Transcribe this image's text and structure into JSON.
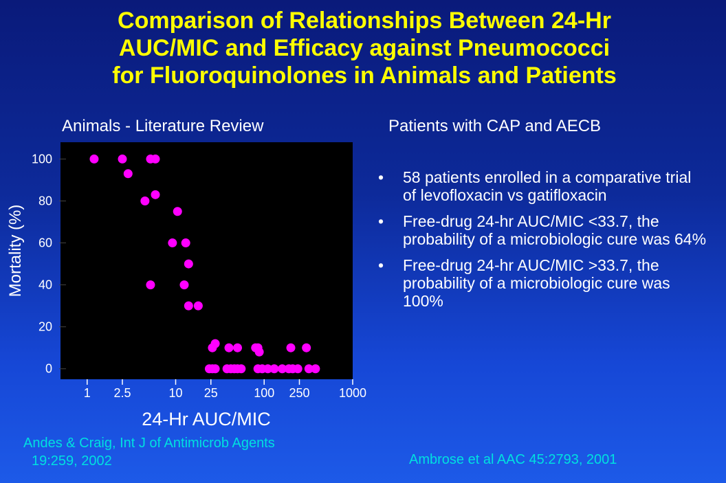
{
  "title": {
    "line1": "Comparison of Relationships Between 24-Hr",
    "line2": "AUC/MIC and Efficacy against Pneumococci",
    "line3": "for Fluoroquinolones in Animals and Patients"
  },
  "left_heading": "Animals - Literature Review",
  "right_heading": "Patients with CAP and AECB",
  "bullets": [
    "58 patients enrolled in a comparative trial of levofloxacin vs gatifloxacin",
    "Free-drug 24-hr AUC/MIC <33.7, the probability of a microbiologic cure was 64%",
    "Free-drug 24-hr AUC/MIC >33.7, the probability of a microbiologic cure was 100%"
  ],
  "bullet_char": "•",
  "references": {
    "left_line1": "Andes & Craig, Int J of Antimicrob Agents",
    "left_line2": "19:259, 2002",
    "right": "Ambrose et al  AAC 45:2793, 2001"
  },
  "colors": {
    "title": "#ffff00",
    "points": "#ff00ff",
    "reference_text": "#00e0e0",
    "plot_background": "#000000"
  },
  "chart_data": {
    "type": "scatter",
    "title": "",
    "xlabel": "24-Hr AUC/MIC",
    "ylabel": "Mortality (%)",
    "x_scale": "log",
    "xlim": [
      0.5,
      1000
    ],
    "ylim": [
      -5,
      108
    ],
    "x_ticks": [
      1,
      2.5,
      10,
      25,
      100,
      250,
      1000
    ],
    "x_tick_labels": [
      "1",
      "2.5",
      "10",
      "25",
      "100",
      "250",
      "1000"
    ],
    "y_ticks": [
      0,
      20,
      40,
      60,
      80,
      100
    ],
    "y_tick_labels": [
      "0",
      "20",
      "40",
      "60",
      "80",
      "100"
    ],
    "grid": false,
    "legend": "none",
    "series": [
      {
        "points": [
          [
            1.2,
            100
          ],
          [
            2.5,
            100
          ],
          [
            2.9,
            93
          ],
          [
            5.2,
            100
          ],
          [
            5.9,
            100
          ],
          [
            4.5,
            80
          ],
          [
            5.9,
            83
          ],
          [
            9.2,
            60
          ],
          [
            10.5,
            75
          ],
          [
            13,
            60
          ],
          [
            14,
            50
          ],
          [
            5.2,
            40
          ],
          [
            12.5,
            40
          ],
          [
            14,
            30
          ],
          [
            18,
            30
          ],
          [
            24,
            0
          ],
          [
            26,
            0
          ],
          [
            28,
            0
          ],
          [
            26,
            10
          ],
          [
            28,
            12
          ],
          [
            40,
            10
          ],
          [
            38,
            0
          ],
          [
            42,
            0
          ],
          [
            46,
            0
          ],
          [
            50,
            10
          ],
          [
            50,
            0
          ],
          [
            55,
            0
          ],
          [
            80,
            10
          ],
          [
            85,
            10
          ],
          [
            88,
            8
          ],
          [
            85,
            0
          ],
          [
            95,
            0
          ],
          [
            110,
            0
          ],
          [
            130,
            0
          ],
          [
            160,
            0
          ],
          [
            190,
            0
          ],
          [
            200,
            10
          ],
          [
            210,
            0
          ],
          [
            240,
            0
          ],
          [
            300,
            10
          ],
          [
            320,
            0
          ],
          [
            380,
            0
          ]
        ]
      }
    ]
  }
}
